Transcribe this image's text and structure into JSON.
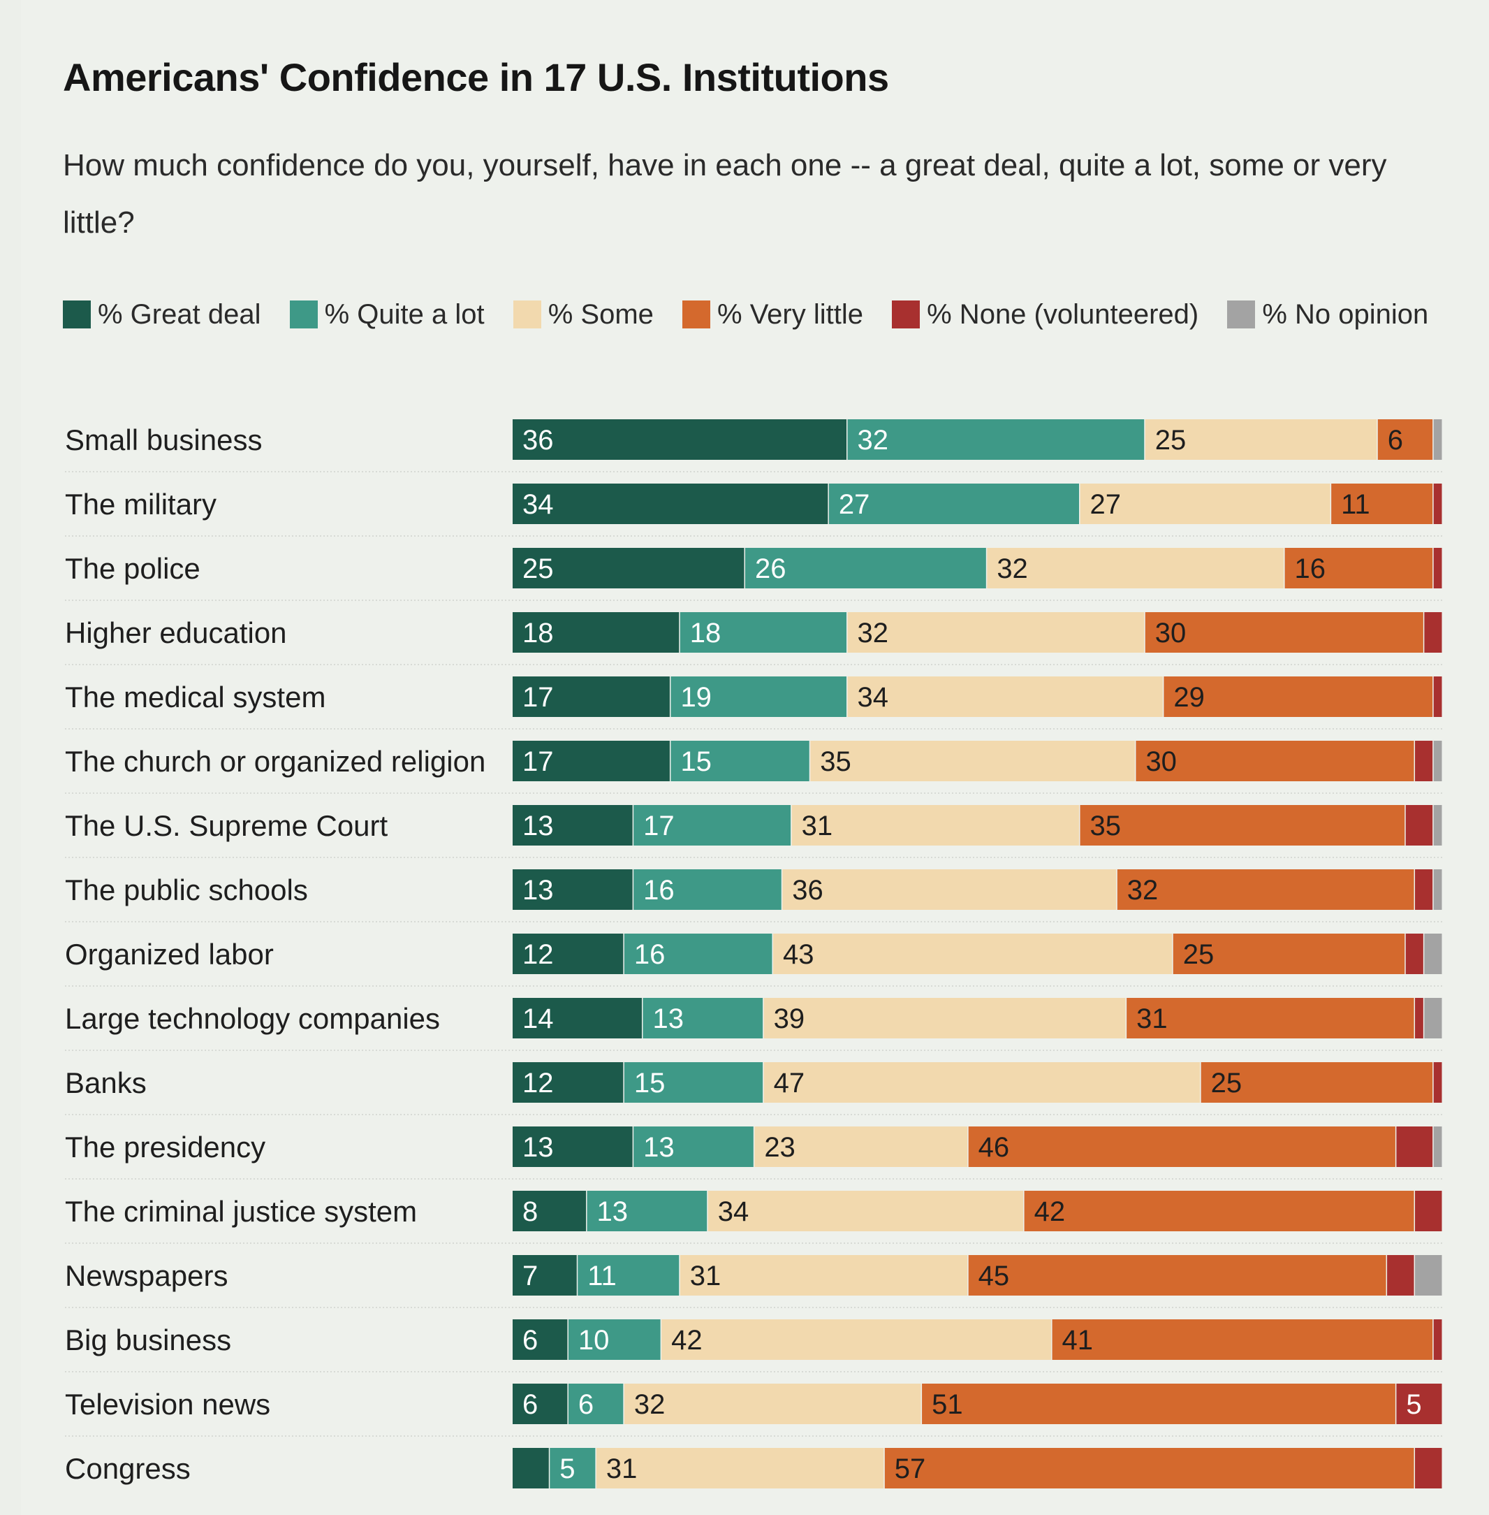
{
  "chart_data": {
    "type": "bar",
    "orientation": "horizontal",
    "stacked": true,
    "title": "Americans' Confidence in 17 U.S. Institutions",
    "subtitle": "How much confidence do you, yourself, have in each one -- a great deal, quite a lot, some or very little?",
    "legend_placement": "top",
    "xlim": [
      0,
      100
    ],
    "grid": false,
    "categories": [
      "Small business",
      "The military",
      "The police",
      "Higher education",
      "The medical system",
      "The church or organized religion",
      "The U.S. Supreme Court",
      "The public schools",
      "Organized labor",
      "Large technology companies",
      "Banks",
      "The presidency",
      "The criminal justice system",
      "Newspapers",
      "Big business",
      "Television news",
      "Congress"
    ],
    "series": [
      {
        "name": "% Great deal",
        "color": "#1c5a4b",
        "text_color": "#ffffff",
        "values": [
          36,
          34,
          25,
          18,
          17,
          17,
          13,
          13,
          12,
          14,
          12,
          13,
          8,
          7,
          6,
          6,
          4
        ],
        "labels": [
          "36",
          "34",
          "25",
          "18",
          "17",
          "17",
          "13",
          "13",
          "12",
          "14",
          "12",
          "13",
          "8",
          "7",
          "6",
          "6",
          ""
        ]
      },
      {
        "name": "% Quite a lot",
        "color": "#3e9987",
        "text_color": "#ffffff",
        "values": [
          32,
          27,
          26,
          18,
          19,
          15,
          17,
          16,
          16,
          13,
          15,
          13,
          13,
          11,
          10,
          6,
          5
        ],
        "labels": [
          "32",
          "27",
          "26",
          "18",
          "19",
          "15",
          "17",
          "16",
          "16",
          "13",
          "15",
          "13",
          "13",
          "11",
          "10",
          "6",
          "5"
        ]
      },
      {
        "name": "% Some",
        "color": "#f2d9ae",
        "text_color": "#1e1e1e",
        "values": [
          25,
          27,
          32,
          32,
          34,
          35,
          31,
          36,
          43,
          39,
          47,
          23,
          34,
          31,
          42,
          32,
          31
        ],
        "labels": [
          "25",
          "27",
          "32",
          "32",
          "34",
          "35",
          "31",
          "36",
          "43",
          "39",
          "47",
          "23",
          "34",
          "31",
          "42",
          "32",
          "31"
        ]
      },
      {
        "name": "% Very little",
        "color": "#d4692d",
        "text_color": "#1e1e1e",
        "values": [
          6,
          11,
          16,
          30,
          29,
          30,
          35,
          32,
          25,
          31,
          25,
          46,
          42,
          45,
          41,
          51,
          57
        ],
        "labels": [
          "6",
          "11",
          "16",
          "30",
          "29",
          "30",
          "35",
          "32",
          "25",
          "31",
          "25",
          "46",
          "42",
          "45",
          "41",
          "51",
          "57"
        ]
      },
      {
        "name": "% None (volunteered)",
        "color": "#a8302f",
        "text_color": "#ffffff",
        "values": [
          0,
          1,
          1,
          2,
          1,
          2,
          3,
          2,
          2,
          1,
          1,
          4,
          3,
          3,
          1,
          5,
          3
        ],
        "labels": [
          "",
          "",
          "",
          "",
          "",
          "",
          "",
          "",
          "",
          "",
          "",
          "",
          "",
          "",
          "",
          "5",
          ""
        ]
      },
      {
        "name": "% No opinion",
        "color": "#a3a3a3",
        "text_color": "#1e1e1e",
        "values": [
          1,
          0,
          0,
          0,
          0,
          1,
          1,
          1,
          2,
          2,
          0,
          1,
          0,
          3,
          0,
          0,
          0
        ],
        "labels": [
          "",
          "",
          "",
          "",
          "",
          "",
          "",
          "",
          "",
          "",
          "",
          "",
          "",
          "",
          "",
          "",
          ""
        ]
      }
    ]
  }
}
